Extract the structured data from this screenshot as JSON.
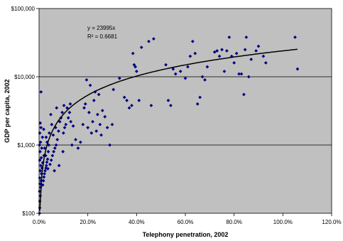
{
  "chart_data": {
    "type": "scatter",
    "title": "",
    "xlabel": "Telephony penetration, 2002",
    "ylabel": "GDP per capita, 2002",
    "x_scale": "linear",
    "y_scale": "log",
    "xlim": [
      0,
      120
    ],
    "ylim": [
      100,
      100000
    ],
    "x_ticks": [
      "0.0%",
      "20.0%",
      "40.0%",
      "60.0%",
      "80.0%",
      "100.0%",
      "120.0%"
    ],
    "x_tick_values": [
      0,
      20,
      40,
      60,
      80,
      100,
      120
    ],
    "y_ticks": [
      "$100",
      "$1,000",
      "$10,000",
      "$100,000"
    ],
    "y_tick_values": [
      100,
      1000,
      10000,
      100000
    ],
    "plot_background": "#c0c0c0",
    "marker_color": "#000080",
    "trendline_color": "#000000",
    "gridlines": "horizontal",
    "trendline": {
      "type": "power",
      "equation": "y = 23995x",
      "r_squared": "R² = 0.6681"
    },
    "series": [
      {
        "marker": "diamond",
        "points": [
          [
            0.2,
            100
          ],
          [
            0.3,
            120
          ],
          [
            0.3,
            150
          ],
          [
            0.5,
            180
          ],
          [
            0.2,
            210
          ],
          [
            0.6,
            240
          ],
          [
            0.4,
            270
          ],
          [
            0.8,
            300
          ],
          [
            0.3,
            330
          ],
          [
            1.0,
            380
          ],
          [
            0.5,
            420
          ],
          [
            1.2,
            460
          ],
          [
            0.7,
            500
          ],
          [
            1.5,
            550
          ],
          [
            0.3,
            600
          ],
          [
            0.9,
            650
          ],
          [
            2.0,
            700
          ],
          [
            0.4,
            800
          ],
          [
            1.1,
            900
          ],
          [
            0.2,
            1000
          ],
          [
            0.6,
            1100
          ],
          [
            1.4,
            1300
          ],
          [
            0.3,
            1500
          ],
          [
            0.8,
            1800
          ],
          [
            0.5,
            2100
          ],
          [
            0.8,
            6000
          ],
          [
            1.5,
            260
          ],
          [
            1.8,
            300
          ],
          [
            2.0,
            340
          ],
          [
            2.2,
            380
          ],
          [
            2.5,
            420
          ],
          [
            2.8,
            460
          ],
          [
            3.0,
            500
          ],
          [
            3.2,
            560
          ],
          [
            3.5,
            620
          ],
          [
            2.7,
            700
          ],
          [
            3.8,
            800
          ],
          [
            2.3,
            900
          ],
          [
            4.0,
            1000
          ],
          [
            3.3,
            1100
          ],
          [
            2.9,
            1300
          ],
          [
            4.2,
            1500
          ],
          [
            1.9,
            1700
          ],
          [
            3.6,
            450
          ],
          [
            4.5,
            520
          ],
          [
            5.0,
            600
          ],
          [
            5.5,
            700
          ],
          [
            6.0,
            800
          ],
          [
            6.5,
            900
          ],
          [
            7.0,
            1000
          ],
          [
            7.5,
            1200
          ],
          [
            5.8,
            1400
          ],
          [
            8.0,
            1600
          ],
          [
            6.8,
            1800
          ],
          [
            5.2,
            2000
          ],
          [
            8.5,
            2200
          ],
          [
            9.0,
            2500
          ],
          [
            4.8,
            2800
          ],
          [
            7.2,
            3500
          ],
          [
            9.5,
            3000
          ],
          [
            8.2,
            500
          ],
          [
            6.3,
            420
          ],
          [
            9.8,
            800
          ],
          [
            10.0,
            1500
          ],
          [
            10.5,
            1800
          ],
          [
            11.0,
            2000
          ],
          [
            12.0,
            2500
          ],
          [
            12.5,
            3000
          ],
          [
            11.5,
            3500
          ],
          [
            13.0,
            2200
          ],
          [
            14.0,
            1900
          ],
          [
            10.2,
            3800
          ],
          [
            12.8,
            4000
          ],
          [
            15.0,
            1200
          ],
          [
            16.0,
            900
          ],
          [
            17.0,
            1100
          ],
          [
            13.5,
            1000
          ],
          [
            18.0,
            2000
          ],
          [
            18.5,
            3500
          ],
          [
            19.0,
            4000
          ],
          [
            19.5,
            9000
          ],
          [
            20.0,
            1800
          ],
          [
            20.5,
            3000
          ],
          [
            21.0,
            7500
          ],
          [
            21.5,
            1500
          ],
          [
            22.0,
            2200
          ],
          [
            22.5,
            4500
          ],
          [
            23.0,
            6000
          ],
          [
            23.5,
            1600
          ],
          [
            24.0,
            2800
          ],
          [
            24.5,
            5500
          ],
          [
            25.0,
            2000
          ],
          [
            25.5,
            1400
          ],
          [
            26.0,
            3200
          ],
          [
            27.0,
            2600
          ],
          [
            28.0,
            1800
          ],
          [
            29.0,
            1000
          ],
          [
            30.0,
            2000
          ],
          [
            30.5,
            6500
          ],
          [
            33.0,
            9500
          ],
          [
            35.0,
            5000
          ],
          [
            36.0,
            4500
          ],
          [
            37.0,
            3500
          ],
          [
            38.0,
            3800
          ],
          [
            38.5,
            22000
          ],
          [
            39.0,
            15000
          ],
          [
            39.5,
            14000
          ],
          [
            40.0,
            12000
          ],
          [
            41.0,
            4500
          ],
          [
            42.0,
            27000
          ],
          [
            45.0,
            33000
          ],
          [
            46.0,
            3800
          ],
          [
            47.0,
            36000
          ],
          [
            52.0,
            15000
          ],
          [
            53.0,
            4500
          ],
          [
            54.0,
            3800
          ],
          [
            55.0,
            13000
          ],
          [
            56.0,
            11000
          ],
          [
            58.0,
            12000
          ],
          [
            60.0,
            9500
          ],
          [
            61.0,
            14000
          ],
          [
            62.0,
            20000
          ],
          [
            63.0,
            33000
          ],
          [
            64.0,
            22000
          ],
          [
            65.0,
            4000
          ],
          [
            66.0,
            5000
          ],
          [
            67.0,
            10000
          ],
          [
            68.0,
            9000
          ],
          [
            69.0,
            14000
          ],
          [
            72.0,
            23000
          ],
          [
            73.0,
            24000
          ],
          [
            74.0,
            20000
          ],
          [
            75.0,
            25000
          ],
          [
            76.0,
            12000
          ],
          [
            77.0,
            24000
          ],
          [
            78.0,
            38000
          ],
          [
            79.0,
            20000
          ],
          [
            80.0,
            16000
          ],
          [
            81.0,
            22000
          ],
          [
            82.0,
            11000
          ],
          [
            83.0,
            11000
          ],
          [
            84.0,
            5500
          ],
          [
            84.5,
            25000
          ],
          [
            85.0,
            38000
          ],
          [
            86.0,
            10000
          ],
          [
            87.0,
            18000
          ],
          [
            89.0,
            24000
          ],
          [
            90.0,
            28000
          ],
          [
            92.0,
            20000
          ],
          [
            93.0,
            16000
          ],
          [
            105.0,
            38000
          ],
          [
            106.0,
            13000
          ]
        ]
      }
    ]
  }
}
